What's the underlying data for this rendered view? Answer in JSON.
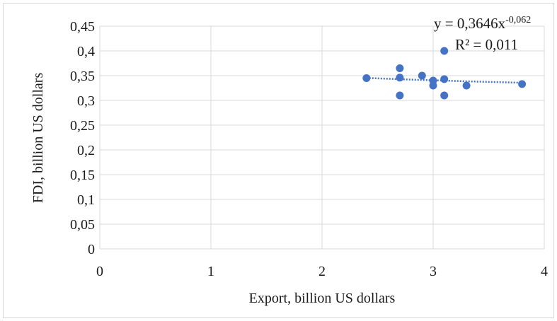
{
  "chart_data": {
    "type": "scatter",
    "xlabel": "Export, billion US dollars",
    "ylabel": "FDI, billion US dollars",
    "xlim": [
      0,
      4
    ],
    "ylim": [
      0,
      0.45
    ],
    "x_ticks": [
      "0",
      "1",
      "2",
      "3",
      "4"
    ],
    "y_ticks": [
      "0",
      "0,05",
      "0,1",
      "0,15",
      "0,2",
      "0,25",
      "0,3",
      "0,35",
      "0,4",
      "0,45"
    ],
    "grid": "vertical and horizontal",
    "series": [
      {
        "points": [
          {
            "x": 2.4,
            "y": 0.345
          },
          {
            "x": 2.7,
            "y": 0.365
          },
          {
            "x": 2.7,
            "y": 0.346
          },
          {
            "x": 2.7,
            "y": 0.31
          },
          {
            "x": 2.9,
            "y": 0.35
          },
          {
            "x": 3.0,
            "y": 0.34
          },
          {
            "x": 3.0,
            "y": 0.33
          },
          {
            "x": 3.1,
            "y": 0.4
          },
          {
            "x": 3.1,
            "y": 0.343
          },
          {
            "x": 3.1,
            "y": 0.31
          },
          {
            "x": 3.3,
            "y": 0.33
          },
          {
            "x": 3.8,
            "y": 0.333
          }
        ]
      }
    ],
    "trendline": {
      "type": "power",
      "coefficient": 0.3646,
      "exponent": -0.062,
      "equation_main": "y = 0,3646x",
      "equation_exponent": "-0,062",
      "r_squared_label": "R² = 0,011"
    },
    "colors": {
      "marker": "#4472c4",
      "trendline": "#4472c4",
      "grid": "#d9d9d9",
      "text": "#1a1a1a"
    }
  }
}
